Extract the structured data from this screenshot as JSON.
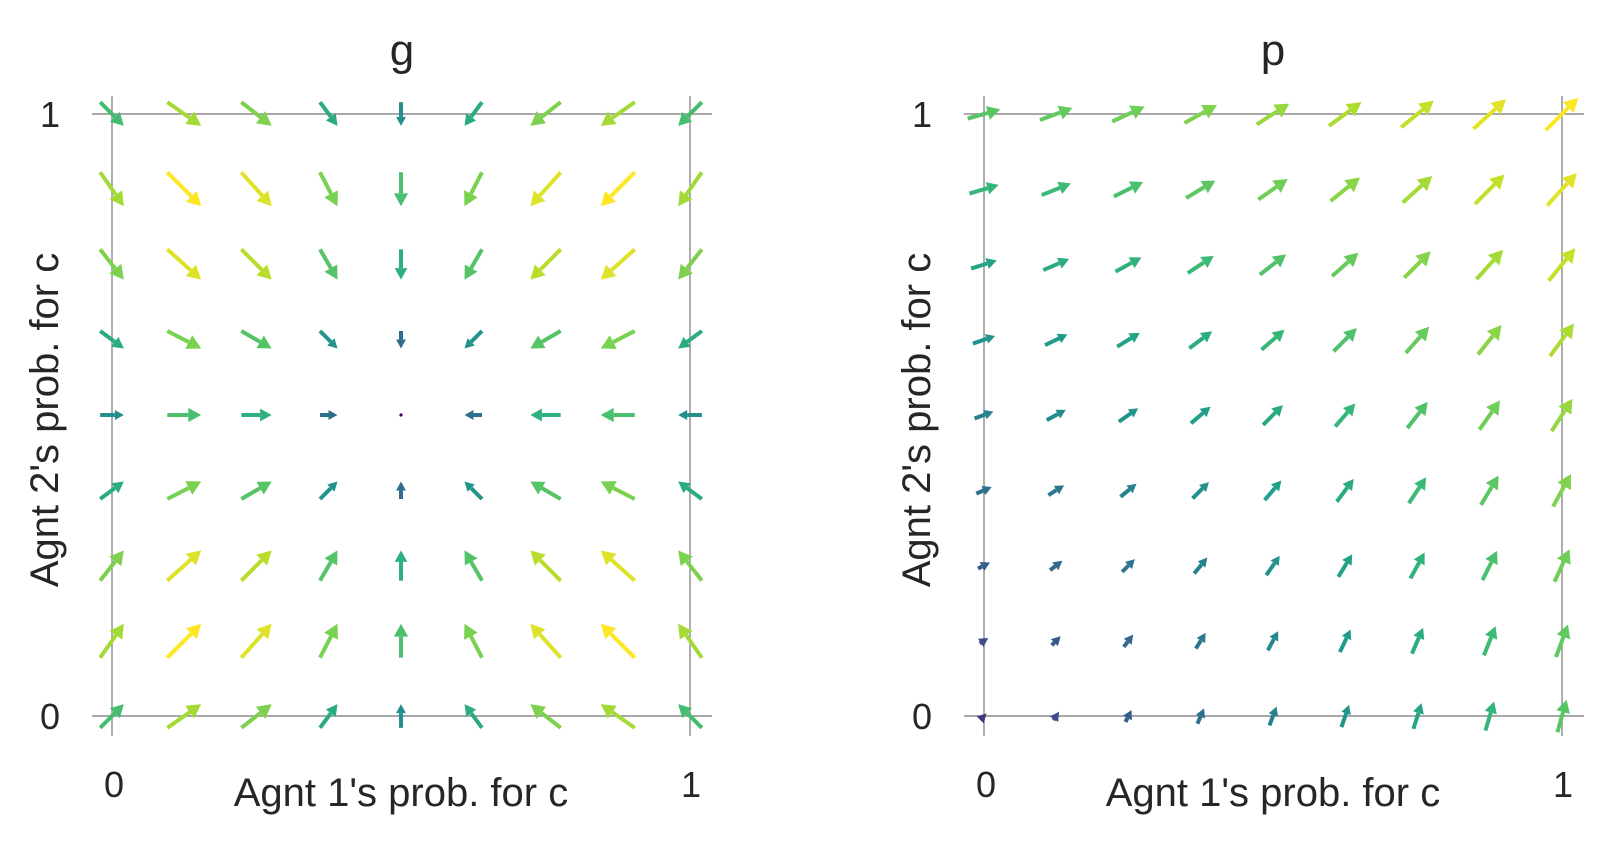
{
  "chart_data": [
    {
      "type": "quiver",
      "title": "g",
      "xlabel": "Agnt 1's prob. for c",
      "ylabel": "Agnt 2's prob. for c",
      "xlim": [
        0,
        1
      ],
      "ylim": [
        0,
        1
      ],
      "xticks": [
        "0",
        "1"
      ],
      "yticks": [
        "0",
        "1"
      ],
      "grid": false,
      "colormap": "viridis",
      "grid_points": [
        0.0,
        0.125,
        0.25,
        0.375,
        0.5,
        0.625,
        0.75,
        0.875,
        1.0
      ],
      "vector_field": "dx = x(1-x)(1-2x) + 0.12(1-2x), dy = y(1-y)(1-2y) + 0.12(1-2y); converges to (0.5, 0.5)"
    },
    {
      "type": "quiver",
      "title": "p",
      "xlabel": "Agnt 1's prob. for c",
      "ylabel": "Agnt 2's prob. for c",
      "xlim": [
        0,
        1
      ],
      "ylim": [
        0,
        1
      ],
      "xticks": [
        "0",
        "1"
      ],
      "yticks": [
        "0",
        "1"
      ],
      "grid": false,
      "colormap": "viridis",
      "grid_points": [
        0.0,
        0.125,
        0.25,
        0.375,
        0.5,
        0.625,
        0.75,
        0.875,
        1.0
      ],
      "vector_field": "dx = 0.09 + 0.23y - 0.04(1-y)(1-x), dy = 0.09 + 0.23x - 0.04(1-x)(1-y); flows toward (1, 1)"
    }
  ]
}
